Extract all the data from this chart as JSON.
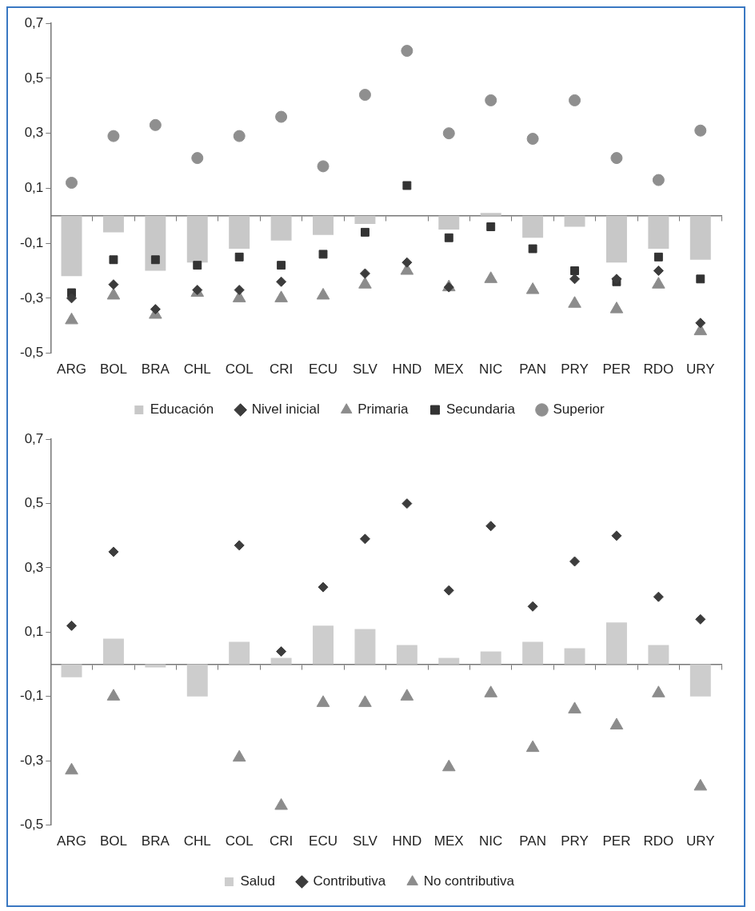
{
  "chart_data": [
    {
      "type": "bar",
      "categories": [
        "ARG",
        "BOL",
        "BRA",
        "CHL",
        "COL",
        "CRI",
        "ECU",
        "SLV",
        "HND",
        "MEX",
        "NIC",
        "PAN",
        "PRY",
        "PER",
        "RDO",
        "URY"
      ],
      "ylim": [
        -0.5,
        0.7
      ],
      "yticks": [
        {
          "value": -0.5,
          "label": "-0,5"
        },
        {
          "value": -0.3,
          "label": "-0,3"
        },
        {
          "value": -0.1,
          "label": "-0,1"
        },
        {
          "value": 0.1,
          "label": "0,1"
        },
        {
          "value": 0.3,
          "label": "0,3"
        },
        {
          "value": 0.5,
          "label": "0,5"
        },
        {
          "value": 0.7,
          "label": "0,7"
        }
      ],
      "grid": false,
      "legend": "bottom",
      "series": [
        {
          "name": "Educación",
          "color": "#c8c8c8",
          "values": [
            -0.22,
            -0.06,
            -0.2,
            -0.17,
            -0.12,
            -0.09,
            -0.07,
            -0.03,
            null,
            -0.05,
            0.01,
            -0.08,
            -0.04,
            -0.17,
            -0.12,
            -0.16
          ]
        },
        {
          "name": "Nivel inicial",
          "type": "scatter",
          "marker": "diamond",
          "color": "#3c3c3c",
          "values": [
            -0.3,
            -0.25,
            -0.34,
            -0.27,
            -0.27,
            -0.24,
            null,
            -0.21,
            -0.17,
            -0.26,
            null,
            null,
            -0.23,
            -0.23,
            -0.2,
            -0.39
          ]
        },
        {
          "name": "Primaria",
          "type": "scatter",
          "marker": "triangle",
          "color": "#8c8c8c",
          "values": [
            -0.38,
            -0.29,
            -0.36,
            -0.28,
            -0.3,
            -0.3,
            -0.29,
            -0.25,
            -0.2,
            -0.26,
            -0.23,
            -0.27,
            -0.32,
            -0.34,
            -0.25,
            -0.42
          ]
        },
        {
          "name": "Secundaria",
          "type": "scatter",
          "marker": "square",
          "color": "#333333",
          "values": [
            -0.28,
            -0.16,
            -0.16,
            -0.18,
            -0.15,
            -0.18,
            -0.14,
            -0.06,
            0.11,
            -0.08,
            -0.04,
            -0.12,
            -0.2,
            -0.24,
            -0.15,
            -0.23
          ]
        },
        {
          "name": "Superior",
          "type": "scatter",
          "marker": "circle",
          "color": "#8f8f8f",
          "values": [
            0.12,
            0.29,
            0.33,
            0.21,
            0.29,
            0.36,
            0.18,
            0.44,
            0.6,
            0.3,
            0.42,
            0.28,
            0.42,
            0.21,
            0.13,
            0.31
          ]
        }
      ]
    },
    {
      "type": "bar",
      "categories": [
        "ARG",
        "BOL",
        "BRA",
        "CHL",
        "COL",
        "CRI",
        "ECU",
        "SLV",
        "HND",
        "MEX",
        "NIC",
        "PAN",
        "PRY",
        "PER",
        "RDO",
        "URY"
      ],
      "ylim": [
        -0.5,
        0.7
      ],
      "yticks": [
        {
          "value": -0.5,
          "label": "-0,5"
        },
        {
          "value": -0.3,
          "label": "-0,3"
        },
        {
          "value": -0.1,
          "label": "-0,1"
        },
        {
          "value": 0.1,
          "label": "0,1"
        },
        {
          "value": 0.3,
          "label": "0,3"
        },
        {
          "value": 0.5,
          "label": "0,5"
        },
        {
          "value": 0.7,
          "label": "0,7"
        }
      ],
      "grid": false,
      "legend": "bottom",
      "series": [
        {
          "name": "Salud",
          "color": "#cdcdcd",
          "values": [
            -0.04,
            0.08,
            -0.01,
            -0.1,
            0.07,
            0.02,
            0.12,
            0.11,
            0.06,
            0.02,
            0.04,
            0.07,
            0.05,
            0.13,
            0.06,
            -0.1
          ]
        },
        {
          "name": "Contributiva",
          "type": "scatter",
          "marker": "diamond",
          "color": "#3c3c3c",
          "values": [
            0.12,
            0.35,
            null,
            null,
            0.37,
            0.04,
            0.24,
            0.39,
            0.5,
            0.23,
            0.43,
            0.18,
            0.32,
            0.4,
            0.21,
            0.14
          ]
        },
        {
          "name": "No contributiva",
          "type": "scatter",
          "marker": "triangle",
          "color": "#8c8c8c",
          "values": [
            -0.33,
            -0.1,
            null,
            null,
            -0.29,
            -0.44,
            -0.12,
            -0.12,
            -0.1,
            -0.32,
            -0.09,
            -0.26,
            -0.14,
            -0.19,
            -0.09,
            -0.38
          ]
        }
      ]
    }
  ]
}
